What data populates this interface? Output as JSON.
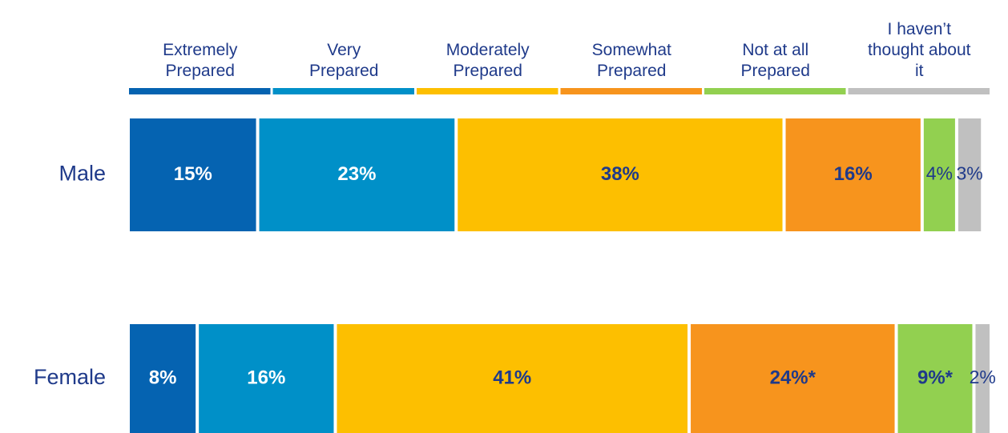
{
  "chart_data": {
    "type": "stacked-bar-horizontal",
    "categories": [
      "Male",
      "Female"
    ],
    "series": [
      {
        "name": "Extremely Prepared",
        "color": "#0563b1",
        "values": [
          15,
          8
        ],
        "value_labels": [
          "15%",
          "8%"
        ]
      },
      {
        "name": "Very Prepared",
        "color": "#0090c8",
        "values": [
          23,
          16
        ],
        "value_labels": [
          "23%",
          "16%"
        ]
      },
      {
        "name": "Moderately Prepared",
        "color": "#fdbf00",
        "values": [
          38,
          41
        ],
        "value_labels": [
          "38%",
          "41%"
        ]
      },
      {
        "name": "Somewhat Prepared",
        "color": "#f7941d",
        "values": [
          16,
          24
        ],
        "value_labels": [
          "16%",
          "24%*"
        ]
      },
      {
        "name": "Not at all Prepared",
        "color": "#92d050",
        "values": [
          4,
          9
        ],
        "value_labels": [
          "4%",
          "9%*"
        ]
      },
      {
        "name": "I haven’t thought about it",
        "color": "#c0c0c0",
        "values": [
          3,
          2
        ],
        "value_labels": [
          "3%",
          "2%"
        ]
      }
    ]
  }
}
